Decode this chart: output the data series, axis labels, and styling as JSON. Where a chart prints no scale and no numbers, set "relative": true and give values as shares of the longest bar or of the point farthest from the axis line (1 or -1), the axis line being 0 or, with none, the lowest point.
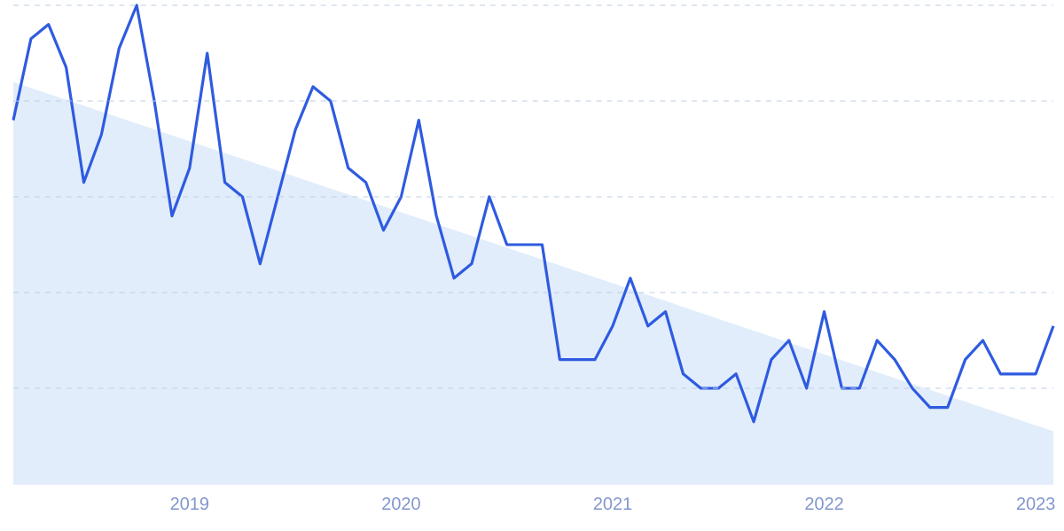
{
  "chart_data": {
    "type": "line",
    "relative": true,
    "grid": "y",
    "xlim": [
      "2018-03",
      "2023-02"
    ],
    "xticks": [
      "2019",
      "2020",
      "2021",
      "2022",
      "2023"
    ],
    "series": [
      {
        "type": "area",
        "color": "#e1edfb",
        "x": [
          "2018-03",
          "2023-02"
        ],
        "values": [
          0.84,
          0.11
        ]
      },
      {
        "type": "line",
        "color": "#2f5be0",
        "x": [
          "2018-03",
          "2018-04",
          "2018-05",
          "2018-06",
          "2018-07",
          "2018-08",
          "2018-09",
          "2018-10",
          "2018-11",
          "2018-12",
          "2019-01",
          "2019-02",
          "2019-03",
          "2019-04",
          "2019-05",
          "2019-06",
          "2019-07",
          "2019-08",
          "2019-09",
          "2019-10",
          "2019-11",
          "2019-12",
          "2020-01",
          "2020-02",
          "2020-03",
          "2020-04",
          "2020-05",
          "2020-06",
          "2020-07",
          "2020-08",
          "2020-09",
          "2020-10",
          "2020-11",
          "2020-12",
          "2021-01",
          "2021-02",
          "2021-03",
          "2021-04",
          "2021-05",
          "2021-06",
          "2021-07",
          "2021-08",
          "2021-09",
          "2021-10",
          "2021-11",
          "2021-12",
          "2022-01",
          "2022-02",
          "2022-03",
          "2022-04",
          "2022-05",
          "2022-06",
          "2022-07",
          "2022-08",
          "2022-09",
          "2022-10",
          "2022-11",
          "2022-12",
          "2023-01",
          "2023-02"
        ],
        "values": [
          0.76,
          0.93,
          0.96,
          0.87,
          0.63,
          0.73,
          0.91,
          1.0,
          0.8,
          0.56,
          0.66,
          0.9,
          0.63,
          0.6,
          0.46,
          0.6,
          0.74,
          0.83,
          0.8,
          0.66,
          0.63,
          0.53,
          0.6,
          0.76,
          0.56,
          0.43,
          0.46,
          0.6,
          0.5,
          0.5,
          0.5,
          0.26,
          0.26,
          0.26,
          0.33,
          0.43,
          0.33,
          0.36,
          0.23,
          0.2,
          0.2,
          0.23,
          0.13,
          0.26,
          0.3,
          0.2,
          0.36,
          0.2,
          0.2,
          0.3,
          0.26,
          0.2,
          0.16,
          0.16,
          0.26,
          0.3,
          0.23,
          0.23,
          0.23,
          0.33
        ]
      }
    ]
  }
}
